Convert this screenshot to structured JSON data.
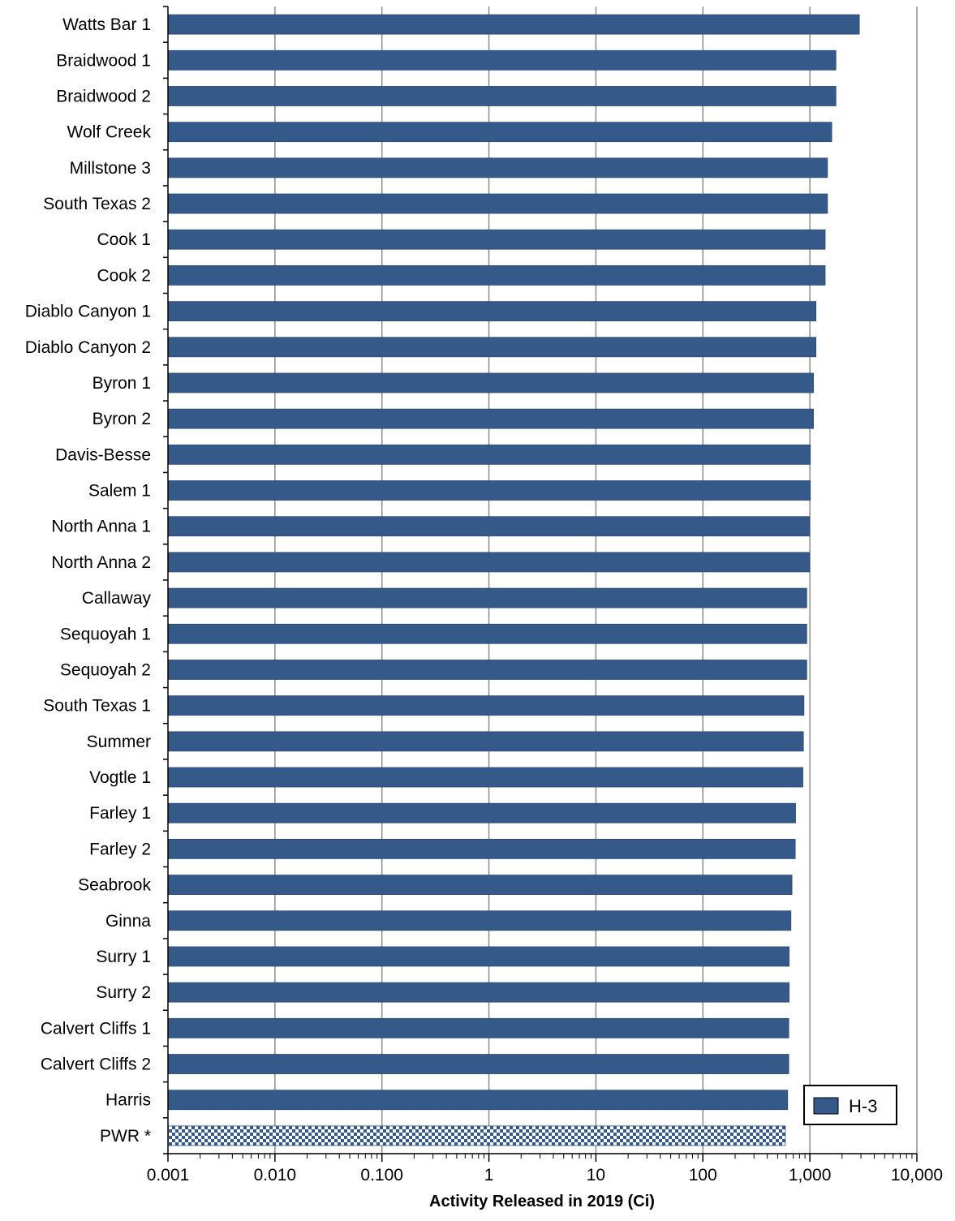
{
  "chart_data": {
    "type": "bar",
    "orientation": "horizontal",
    "x_scale": "log",
    "xlim": [
      0.001,
      10000
    ],
    "grid": "vertical lines at major decades",
    "legend_position": "bottom-right",
    "xlabel": "Activity Released in 2019 (Ci)",
    "ylabel": "",
    "title": "",
    "xticks": [
      0.001,
      0.01,
      0.1,
      1,
      10,
      100,
      1000,
      10000
    ],
    "xtick_labels": [
      "0.001",
      "0.010",
      "0.100",
      "1",
      "10",
      "100",
      "1,000",
      "10,000"
    ],
    "categories": [
      "Watts Bar 1",
      "Braidwood 1",
      "Braidwood 2",
      "Wolf Creek",
      "Millstone 3",
      "South Texas 2",
      "Cook 1",
      "Cook 2",
      "Diablo Canyon 1",
      "Diablo Canyon 2",
      "Byron 1",
      "Byron 2",
      "Davis-Besse",
      "Salem 1",
      "North Anna 1",
      "North Anna 2",
      "Callaway",
      "Sequoyah 1",
      "Sequoyah 2",
      "South Texas 1",
      "Summer",
      "Vogtle 1",
      "Farley 1",
      "Farley 2",
      "Seabrook",
      "Ginna",
      "Surry 1",
      "Surry 2",
      "Calvert Cliffs 1",
      "Calvert Cliffs 2",
      "Harris",
      "PWR *"
    ],
    "series": [
      {
        "name": "H-3",
        "color": "#355a89",
        "values": [
          2900,
          1750,
          1750,
          1600,
          1460,
          1460,
          1390,
          1390,
          1140,
          1140,
          1080,
          1080,
          1010,
          1010,
          990,
          990,
          935,
          935,
          935,
          880,
          870,
          860,
          735,
          730,
          680,
          665,
          640,
          640,
          635,
          635,
          620,
          590
        ]
      }
    ],
    "pattern_bars": [
      "PWR *"
    ],
    "pattern_style": "checkerboard"
  }
}
